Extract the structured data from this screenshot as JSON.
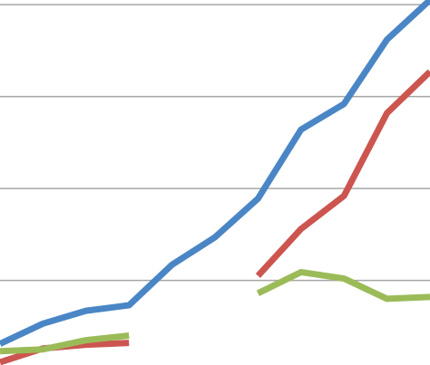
{
  "chart_data": {
    "type": "line",
    "x": [
      0,
      1,
      2,
      3,
      4,
      5,
      6,
      7,
      8,
      9,
      10
    ],
    "xlim": [
      0,
      10
    ],
    "ylim": [
      0.08,
      4.05
    ],
    "yticks": [
      1,
      2,
      3,
      4
    ],
    "grid": true,
    "series": [
      {
        "color": "#4a86c5",
        "values": [
          0.31,
          0.53,
          0.67,
          0.73,
          1.17,
          1.47,
          1.89,
          2.64,
          2.92,
          3.62,
          4.05
        ]
      },
      {
        "color": "#cc5550",
        "values": [
          0.11,
          0.26,
          0.3,
          0.32,
          null,
          null,
          1.05,
          1.56,
          1.92,
          2.82,
          3.27
        ]
      },
      {
        "color": "#9bbb59",
        "values": [
          0.23,
          0.25,
          0.35,
          0.4,
          null,
          null,
          0.86,
          1.09,
          1.02,
          0.8,
          0.82
        ]
      }
    ]
  }
}
